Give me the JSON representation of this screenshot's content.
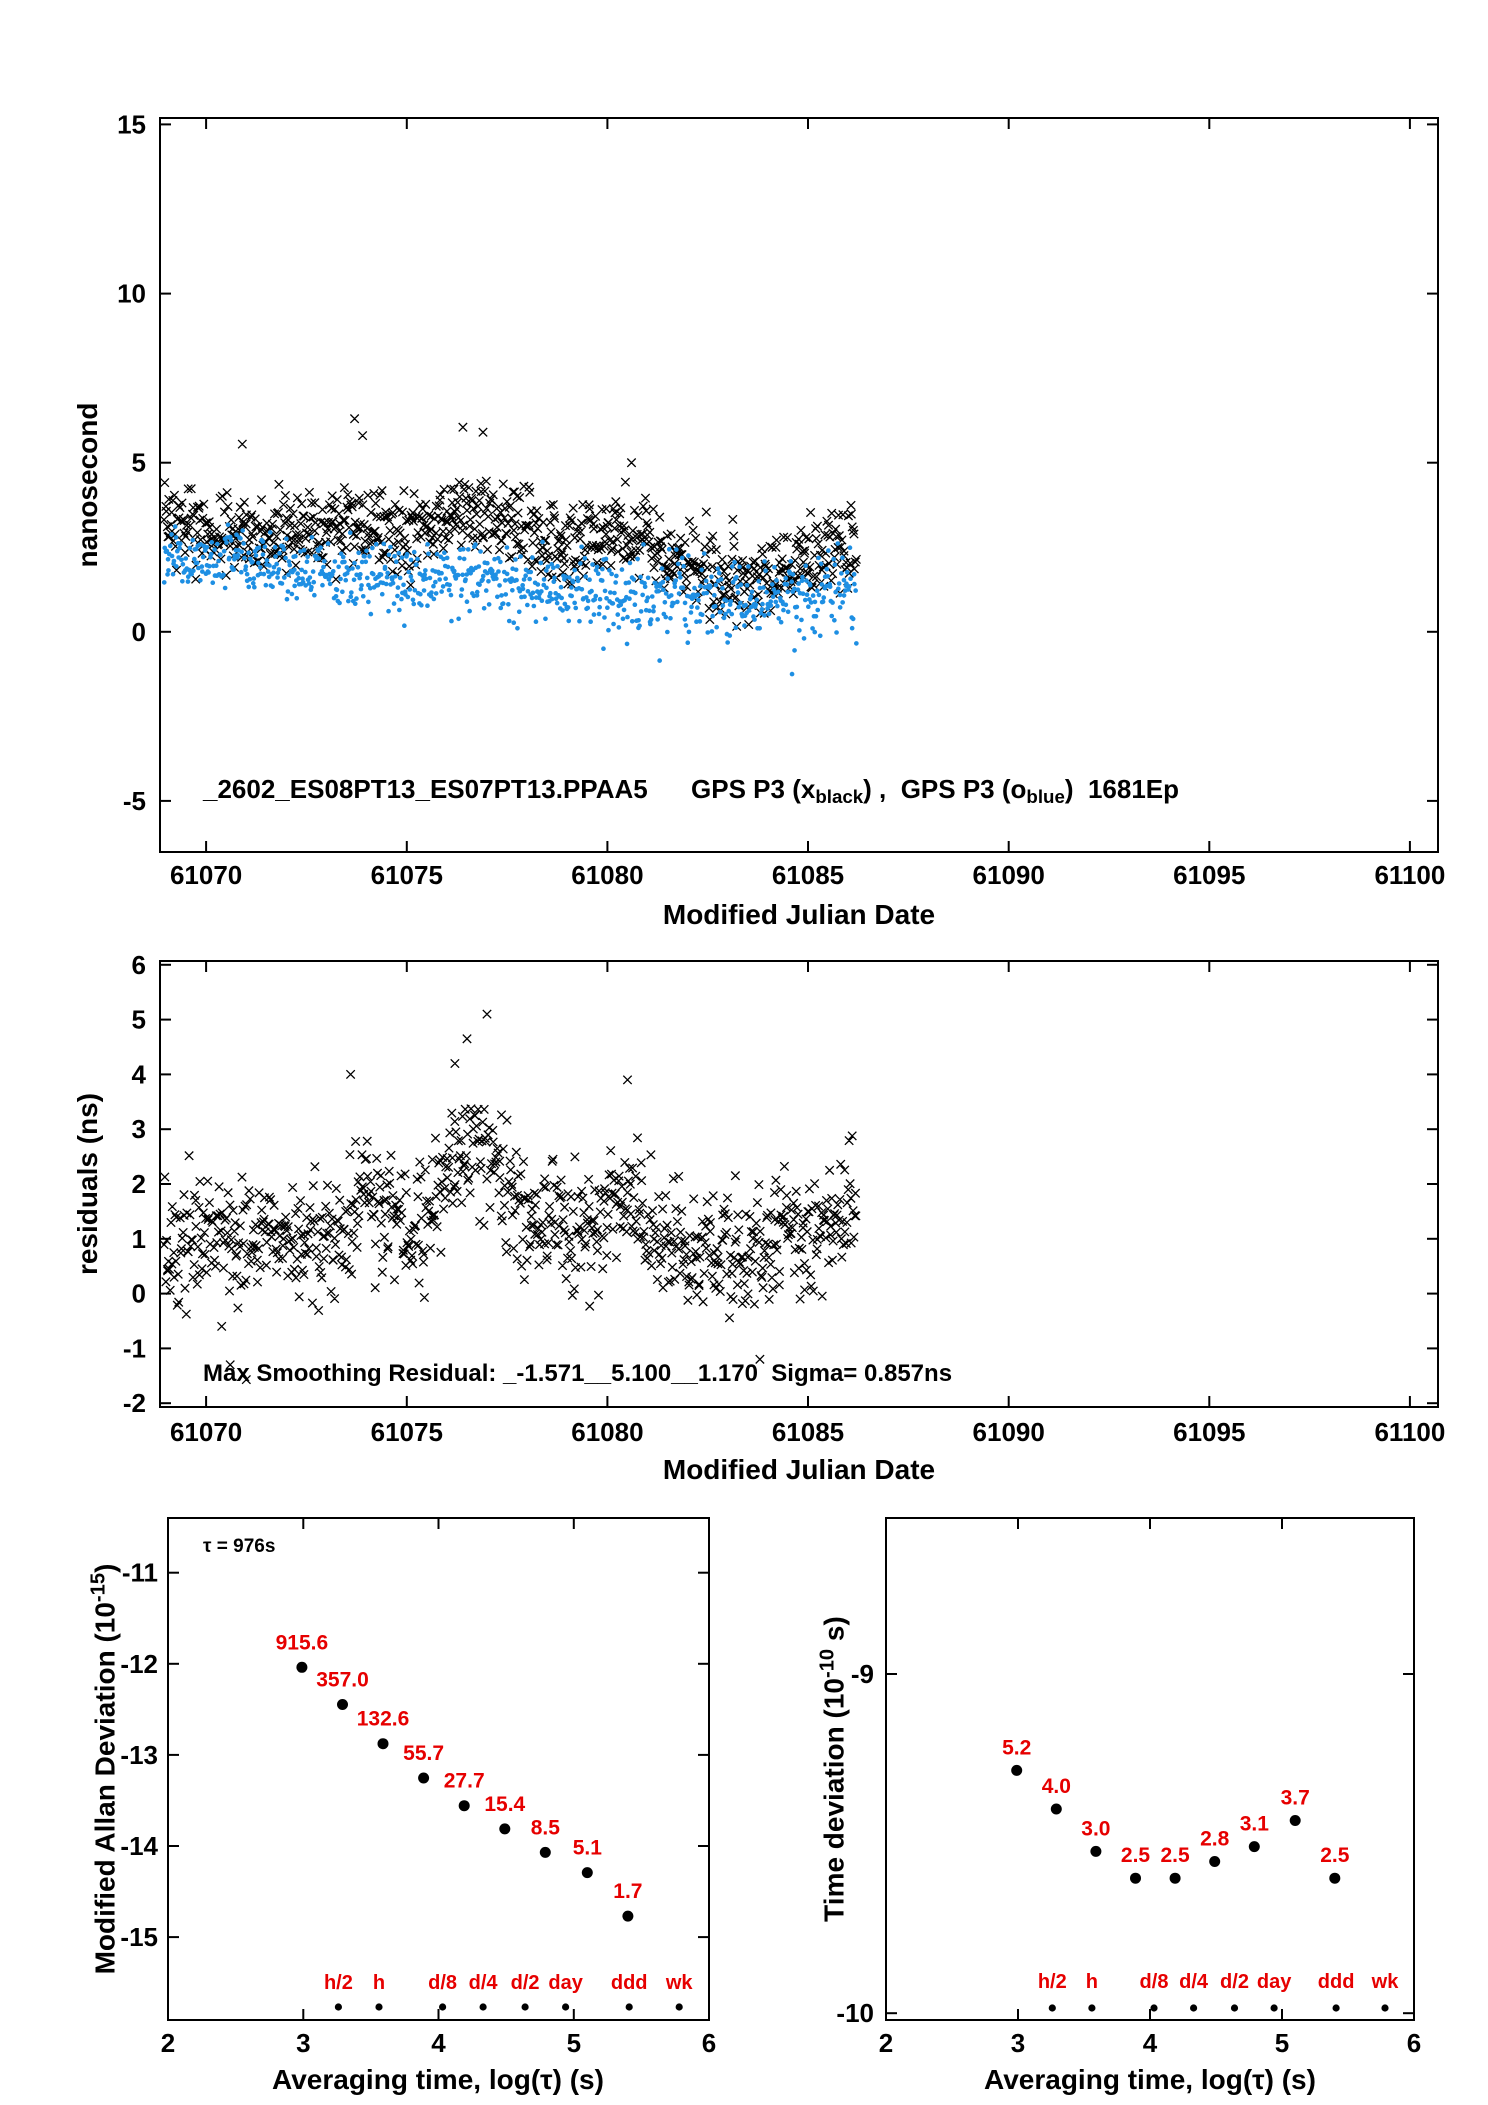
{
  "page": {
    "background": "#ffffff"
  },
  "colors": {
    "black": "#000000",
    "blue": "#1E8FE3",
    "red": "#E60000"
  },
  "chart_data": [
    {
      "id": "phase-comparison",
      "type": "scatter",
      "ylabel": "nanosecond",
      "xlabel": "Modified Julian Date",
      "x_range": [
        61068.85,
        61100.7
      ],
      "y_range": [
        -6.51,
        15.19
      ],
      "x_ticks": [
        61070,
        61075,
        61080,
        61085,
        61090,
        61095,
        61100
      ],
      "y_ticks": [
        -5,
        0,
        5,
        10,
        15
      ],
      "annotation": {
        "seg_a": "_2602_ES08PT13_ES07PT13.PPAA5      GPS P3 (x",
        "sub_a": "black",
        "seg_b": ") ,  GPS P3 (o",
        "sub_b": "blue",
        "seg_c": ")  1681Ep"
      },
      "series": [
        {
          "name": "GPS P3 black",
          "marker": "x",
          "color": "#000000",
          "generator": {
            "seed": 20602,
            "n": 880,
            "x_span": [
              61068.95,
              61086.2
            ],
            "mean_points": [
              [
                61069,
                3.1
              ],
              [
                61071,
                2.95
              ],
              [
                61073,
                3.0
              ],
              [
                61073.8,
                3.25
              ],
              [
                61075,
                2.85
              ],
              [
                61076.6,
                3.65
              ],
              [
                61077.4,
                3.4
              ],
              [
                61078.2,
                2.8
              ],
              [
                61079.2,
                2.55
              ],
              [
                61080.4,
                3.0
              ],
              [
                61081.5,
                2.2
              ],
              [
                61082.6,
                1.6
              ],
              [
                61083.8,
                1.55
              ],
              [
                61085,
                2.2
              ],
              [
                61086.2,
                2.7
              ]
            ],
            "sd": [
              0.55,
              0.6
            ],
            "outliers": [
              [
                61073.7,
                6.3
              ],
              [
                61076.4,
                6.05
              ],
              [
                61070.9,
                5.55
              ],
              [
                61073.9,
                5.8
              ],
              [
                61080.6,
                5.0
              ],
              [
                61076.9,
                5.9
              ]
            ]
          }
        },
        {
          "name": "GPS P3 blue",
          "marker": "dot",
          "color": "#1E8FE3",
          "generator": {
            "seed": 777,
            "n": 880,
            "x_span": [
              61068.95,
              61086.2
            ],
            "mean_points": [
              [
                61069,
                2.2
              ],
              [
                61071,
                1.95
              ],
              [
                61073,
                1.85
              ],
              [
                61074,
                1.65
              ],
              [
                61075.5,
                1.5
              ],
              [
                61077,
                1.55
              ],
              [
                61078,
                1.35
              ],
              [
                61079.5,
                1.2
              ],
              [
                61081,
                1.05
              ],
              [
                61082.5,
                1.0
              ],
              [
                61084,
                1.0
              ],
              [
                61085.2,
                1.15
              ],
              [
                61086.2,
                1.1
              ]
            ],
            "sd": [
              0.42,
              0.62
            ],
            "outliers": [
              [
                61084.6,
                -1.25
              ],
              [
                61081.3,
                -0.85
              ],
              [
                61079.9,
                -0.5
              ]
            ]
          }
        }
      ]
    },
    {
      "id": "smoothing-residuals",
      "type": "scatter",
      "ylabel": "residuals (ns)",
      "xlabel": "Modified Julian Date",
      "x_range": [
        61068.85,
        61100.7
      ],
      "y_range": [
        -2.07,
        6.07
      ],
      "x_ticks": [
        61070,
        61075,
        61080,
        61085,
        61090,
        61095,
        61100
      ],
      "y_ticks": [
        -2,
        -1,
        0,
        1,
        2,
        3,
        4,
        5,
        6
      ],
      "annotation_text": "Max Smoothing Residual: _-1.571__5.100__1.170  Sigma= 0.857ns",
      "series": [
        {
          "name": "residuals",
          "marker": "x",
          "color": "#000000",
          "generator": {
            "seed": 3141,
            "n": 880,
            "x_span": [
              61068.95,
              61086.2
            ],
            "mean_points": [
              [
                61069,
                0.85
              ],
              [
                61070,
                0.95
              ],
              [
                61071,
                1.1
              ],
              [
                61072,
                0.9
              ],
              [
                61073,
                0.75
              ],
              [
                61073.8,
                1.85
              ],
              [
                61074.4,
                1.5
              ],
              [
                61075.1,
                0.95
              ],
              [
                61075.9,
                2.2
              ],
              [
                61076.6,
                2.6
              ],
              [
                61077.2,
                2.35
              ],
              [
                61078,
                1.5
              ],
              [
                61078.8,
                1.1
              ],
              [
                61079.5,
                1.25
              ],
              [
                61080.3,
                1.8
              ],
              [
                61081,
                1.45
              ],
              [
                61081.9,
                0.8
              ],
              [
                61082.6,
                0.6
              ],
              [
                61083.4,
                0.8
              ],
              [
                61084.2,
                1.0
              ],
              [
                61085,
                1.15
              ],
              [
                61085.7,
                1.45
              ],
              [
                61086.2,
                1.55
              ]
            ],
            "sd": [
              0.55,
              0.55
            ],
            "outliers": [
              [
                61077.0,
                5.1
              ],
              [
                61076.5,
                4.65
              ],
              [
                61076.2,
                4.2
              ],
              [
                61073.6,
                4.0
              ],
              [
                61080.5,
                3.9
              ],
              [
                61071.0,
                -1.57
              ],
              [
                61070.6,
                -1.3
              ],
              [
                61083.8,
                -1.2
              ]
            ]
          }
        }
      ]
    },
    {
      "id": "modified-allan-deviation",
      "type": "scatter",
      "ylabel_parts": {
        "pre": "Modified Allan Deviation (10",
        "sup": "-15",
        "post": ")"
      },
      "xlabel": "Averaging time, log(τ) (s)",
      "x_range": [
        2,
        6
      ],
      "y_range": [
        -15.91,
        -10.4
      ],
      "x_ticks": [
        2,
        3,
        4,
        5,
        6
      ],
      "y_ticks": [
        -15,
        -14,
        -13,
        -12,
        -11
      ],
      "tau_note": "τ = 976s",
      "points": {
        "log_tau": [
          2.99,
          3.29,
          3.59,
          3.89,
          4.19,
          4.49,
          4.79,
          5.1,
          5.4
        ],
        "values_1e15": [
          915.6,
          357.0,
          132.6,
          55.7,
          27.7,
          15.4,
          8.5,
          5.1,
          1.7
        ],
        "labels": [
          "915.6",
          "357.0",
          "132.6",
          "55.7",
          "27.7",
          "15.4",
          "8.5",
          "5.1",
          "1.7"
        ]
      },
      "avg_markers": {
        "labels": [
          "h/2",
          "h",
          "d/8",
          "d/4",
          "d/2",
          "day",
          "ddd",
          "wk"
        ],
        "log_tau": [
          3.26,
          3.56,
          4.03,
          4.33,
          4.64,
          4.94,
          5.41,
          5.78
        ]
      }
    },
    {
      "id": "time-deviation",
      "type": "scatter",
      "ylabel_parts": {
        "pre": "Time deviation (10",
        "sup": "-10",
        "post": " s)"
      },
      "xlabel": "Averaging time, log(τ) (s)",
      "x_range": [
        2,
        6
      ],
      "y_range": [
        -10.02,
        -8.54
      ],
      "x_ticks": [
        2,
        3,
        4,
        5,
        6
      ],
      "y_ticks": [
        -9,
        -10
      ],
      "points": {
        "log_tau": [
          2.99,
          3.29,
          3.59,
          3.89,
          4.19,
          4.49,
          4.79,
          5.1,
          5.4
        ],
        "values_1e10": [
          5.2,
          4.0,
          3.0,
          2.5,
          2.5,
          2.8,
          3.1,
          3.7,
          2.5
        ],
        "labels": [
          "5.2",
          "4.0",
          "3.0",
          "2.5",
          "2.5",
          "2.8",
          "3.1",
          "3.7",
          "2.5"
        ]
      },
      "avg_markers": {
        "labels": [
          "h/2",
          "h",
          "d/8",
          "d/4",
          "d/2",
          "day",
          "ddd",
          "wk"
        ],
        "log_tau": [
          3.26,
          3.56,
          4.03,
          4.33,
          4.64,
          4.94,
          5.41,
          5.78
        ]
      }
    }
  ]
}
